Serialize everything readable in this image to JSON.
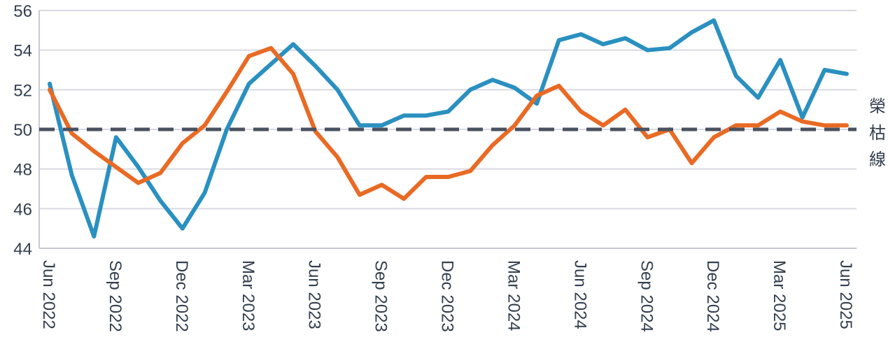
{
  "chart_data": {
    "type": "line",
    "title": "",
    "xlabel": "",
    "ylabel": "",
    "ylim": [
      44,
      56
    ],
    "yticks": [
      44,
      46,
      48,
      50,
      52,
      54,
      56
    ],
    "grid": true,
    "x": [
      "Jun 2022",
      "Jul 2022",
      "Aug 2022",
      "Sep 2022",
      "Oct 2022",
      "Nov 2022",
      "Dec 2022",
      "Jan 2023",
      "Feb 2023",
      "Mar 2023",
      "Apr 2023",
      "May 2023",
      "Jun 2023",
      "Jul 2023",
      "Aug 2023",
      "Sep 2023",
      "Oct 2023",
      "Nov 2023",
      "Dec 2023",
      "Jan 2024",
      "Feb 2024",
      "Mar 2024",
      "Apr 2024",
      "May 2024",
      "Jun 2024",
      "Jul 2024",
      "Aug 2024",
      "Sep 2024",
      "Oct 2024",
      "Nov 2024",
      "Dec 2024",
      "Jan 2025",
      "Feb 2025",
      "Mar 2025",
      "Apr 2025",
      "May 2025",
      "Jun 2025"
    ],
    "xtick_labels": [
      "Jun 2022",
      "Sep 2022",
      "Dec 2022",
      "Mar 2023",
      "Jun 2023",
      "Sep 2023",
      "Dec 2023",
      "Mar 2024",
      "Jun 2024",
      "Sep 2024",
      "Dec 2024",
      "Mar 2025",
      "Jun 2025"
    ],
    "series": [
      {
        "color": "#2a90c0",
        "values": [
          52.3,
          47.7,
          44.6,
          49.6,
          48.1,
          46.4,
          45.0,
          46.8,
          50.0,
          52.3,
          53.3,
          54.3,
          53.2,
          52.0,
          50.2,
          50.2,
          50.7,
          50.7,
          50.9,
          52.0,
          52.5,
          52.1,
          51.3,
          54.5,
          54.8,
          54.3,
          54.6,
          54.0,
          54.1,
          54.9,
          55.5,
          52.7,
          51.6,
          53.5,
          50.6,
          53.0,
          52.8
        ]
      },
      {
        "color": "#e96a24",
        "values": [
          52.0,
          49.8,
          48.9,
          48.1,
          47.3,
          47.8,
          49.3,
          50.2,
          51.9,
          53.7,
          54.1,
          52.8,
          49.9,
          48.6,
          46.7,
          47.2,
          46.5,
          47.6,
          47.6,
          47.9,
          49.2,
          50.2,
          51.7,
          52.2,
          50.9,
          50.2,
          51.0,
          49.6,
          50.0,
          48.3,
          49.6,
          50.2,
          50.2,
          50.9,
          50.4,
          50.2,
          50.2
        ]
      }
    ],
    "reference_line": {
      "value": 50,
      "label": "榮枯線",
      "color": "#4a5260"
    }
  }
}
